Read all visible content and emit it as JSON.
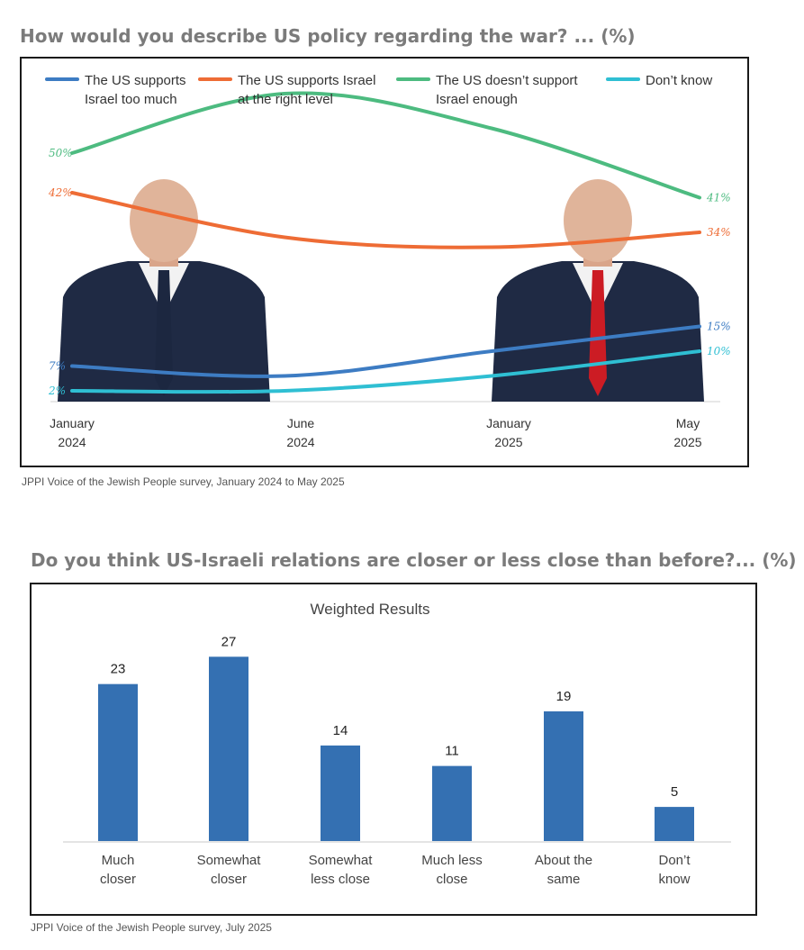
{
  "charts": {
    "c1_title": "How would you describe US policy regarding the war? ... (%)",
    "c1_source": "JPPI Voice of the Jewish People survey, January 2024 to May 2025",
    "c2_title": "Do you think US-Israeli relations are closer or less close than before?... (%)",
    "c2_source": "JPPI Voice of the Jewish People survey, July 2025"
  },
  "chart_data": [
    {
      "type": "line",
      "title": "How would you describe US policy regarding the war? ... (%)",
      "x": [
        "January 2024",
        "June 2024",
        "January 2025",
        "May 2025"
      ],
      "x_tick_lines": [
        [
          "January",
          "2024"
        ],
        [
          "June",
          "2024"
        ],
        [
          "January",
          "2025"
        ],
        [
          "May",
          "2025"
        ]
      ],
      "series": [
        {
          "name": "The US supports Israel too much",
          "legend_lines": [
            "The US supports",
            "Israel too much"
          ],
          "color": "#3d7cc3",
          "values": [
            7,
            5,
            10,
            15
          ],
          "start_label": "7%",
          "end_label": "15%"
        },
        {
          "name": "The US supports Israel at the right level",
          "legend_lines": [
            "The US supports Israel",
            "at the right level"
          ],
          "color": "#ee6c35",
          "values": [
            42,
            33,
            31,
            34
          ],
          "start_label": "42%",
          "end_label": "34%"
        },
        {
          "name": "The US doesn’t support Israel enough",
          "legend_lines": [
            "The US doesn’t support",
            "Israel enough"
          ],
          "color": "#4dbb80",
          "values": [
            50,
            62,
            55,
            41
          ],
          "start_label": "50%",
          "end_label": "41%"
        },
        {
          "name": "Don’t know",
          "legend_lines": [
            "Don’t know"
          ],
          "color": "#2fbfd3",
          "values": [
            2,
            2,
            5,
            10
          ],
          "start_label": "2%",
          "end_label": "10%"
        }
      ],
      "legend_position": "top",
      "grid": false,
      "ylim": [
        0,
        70
      ],
      "images": [
        "biden-portrait",
        "trump-portrait"
      ]
    },
    {
      "type": "bar",
      "title": "Do you think US-Israeli relations are closer or less close than before?... (%)",
      "subtitle": "Weighted Results",
      "categories": [
        "Much closer",
        "Somewhat closer",
        "Somewhat less close",
        "Much less close",
        "About the same",
        "Don’t know"
      ],
      "category_lines": [
        [
          "Much",
          "closer"
        ],
        [
          "Somewhat",
          "closer"
        ],
        [
          "Somewhat",
          "less close"
        ],
        [
          "Much less",
          "close"
        ],
        [
          "About the",
          "same"
        ],
        [
          "Don’t",
          "know"
        ]
      ],
      "values": [
        23,
        27,
        14,
        11,
        19,
        5
      ],
      "bar_color": "#3470b2",
      "ylim": [
        0,
        30
      ],
      "grid": false
    }
  ]
}
